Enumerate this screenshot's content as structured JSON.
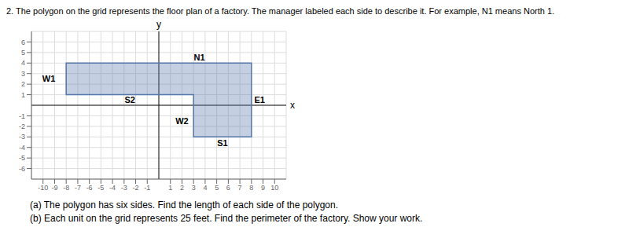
{
  "chart_data": {
    "type": "polygon",
    "title": "2.  The polygon on the grid represents the floor plan of a factory. The manager labeled each side to describe it. For example, N1 means North 1.",
    "x": [
      -8,
      8,
      8,
      3,
      3,
      -8
    ],
    "values": [
      4,
      4,
      -3,
      -3,
      1,
      1
    ],
    "color": "#5577aa",
    "xlim": [
      -11,
      11
    ],
    "ylim": [
      -7,
      7
    ],
    "xticks": [
      -10,
      -9,
      -8,
      -7,
      -6,
      -5,
      -4,
      -3,
      -2,
      -1,
      1,
      2,
      3,
      4,
      5,
      6,
      7,
      8,
      9,
      10
    ],
    "yticks": [
      -6,
      -5,
      -4,
      -3,
      -2,
      -1,
      1,
      2,
      3,
      4,
      5,
      6
    ],
    "xlabel": "x",
    "ylabel": "y",
    "grid": true,
    "annotations": [
      {
        "text": "N1",
        "x": 3.5,
        "y": 4.55
      },
      {
        "text": "E1",
        "x": 8.7,
        "y": 0.5
      },
      {
        "text": "S1",
        "x": 5.5,
        "y": -3.55
      },
      {
        "text": "W2",
        "x": 2.0,
        "y": -1.5
      },
      {
        "text": "S2",
        "x": -2.5,
        "y": 0.55
      },
      {
        "text": "W1",
        "x": -9.5,
        "y": 2.5
      }
    ],
    "questions": [
      "(a)  The polygon has six sides. Find the length of each side of the polygon.",
      "(b)  Each unit on the grid represents 25 feet. Find the perimeter of the factory. Show your work."
    ]
  }
}
